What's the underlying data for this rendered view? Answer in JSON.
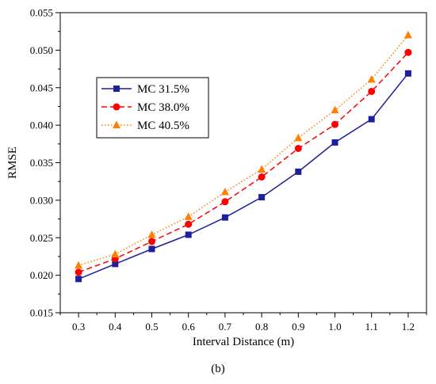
{
  "chart_data": {
    "type": "line",
    "xlabel": "Interval Distance (m)",
    "ylabel": "RMSE",
    "xlim": [
      0.25,
      1.25
    ],
    "ylim": [
      0.015,
      0.055
    ],
    "x": [
      0.3,
      0.4,
      0.5,
      0.6,
      0.7,
      0.8,
      0.9,
      1.0,
      1.1,
      1.2
    ],
    "x_tick_labels": [
      "0.3",
      "0.4",
      "0.5",
      "0.6",
      "0.7",
      "0.8",
      "0.9",
      "1.0",
      "1.1",
      "1.2"
    ],
    "y_ticks": [
      0.015,
      0.02,
      0.025,
      0.03,
      0.035,
      0.04,
      0.045,
      0.05,
      0.055
    ],
    "y_tick_labels": [
      "0.015",
      "0.020",
      "0.025",
      "0.030",
      "0.035",
      "0.040",
      "0.045",
      "0.050",
      "0.055"
    ],
    "grid": false,
    "legend_position": "top-left",
    "series": [
      {
        "name": "MC 31.5%",
        "color": "#1f1f9e",
        "line_style": "solid",
        "marker": "square",
        "values": [
          0.0195,
          0.0215,
          0.0235,
          0.0254,
          0.0277,
          0.0304,
          0.0338,
          0.0377,
          0.0408,
          0.0469
        ]
      },
      {
        "name": "MC 38.0%",
        "color": "#ff0000",
        "line_style": "dashed",
        "marker": "circle",
        "values": [
          0.0204,
          0.0222,
          0.0245,
          0.0268,
          0.0298,
          0.0331,
          0.0369,
          0.0401,
          0.0445,
          0.0497
        ]
      },
      {
        "name": "MC 40.5%",
        "color": "#ff8000",
        "line_style": "dotted",
        "marker": "triangle",
        "values": [
          0.0213,
          0.0228,
          0.0254,
          0.0278,
          0.0311,
          0.0341,
          0.0383,
          0.042,
          0.0461,
          0.052
        ]
      }
    ]
  },
  "caption": "(b)"
}
